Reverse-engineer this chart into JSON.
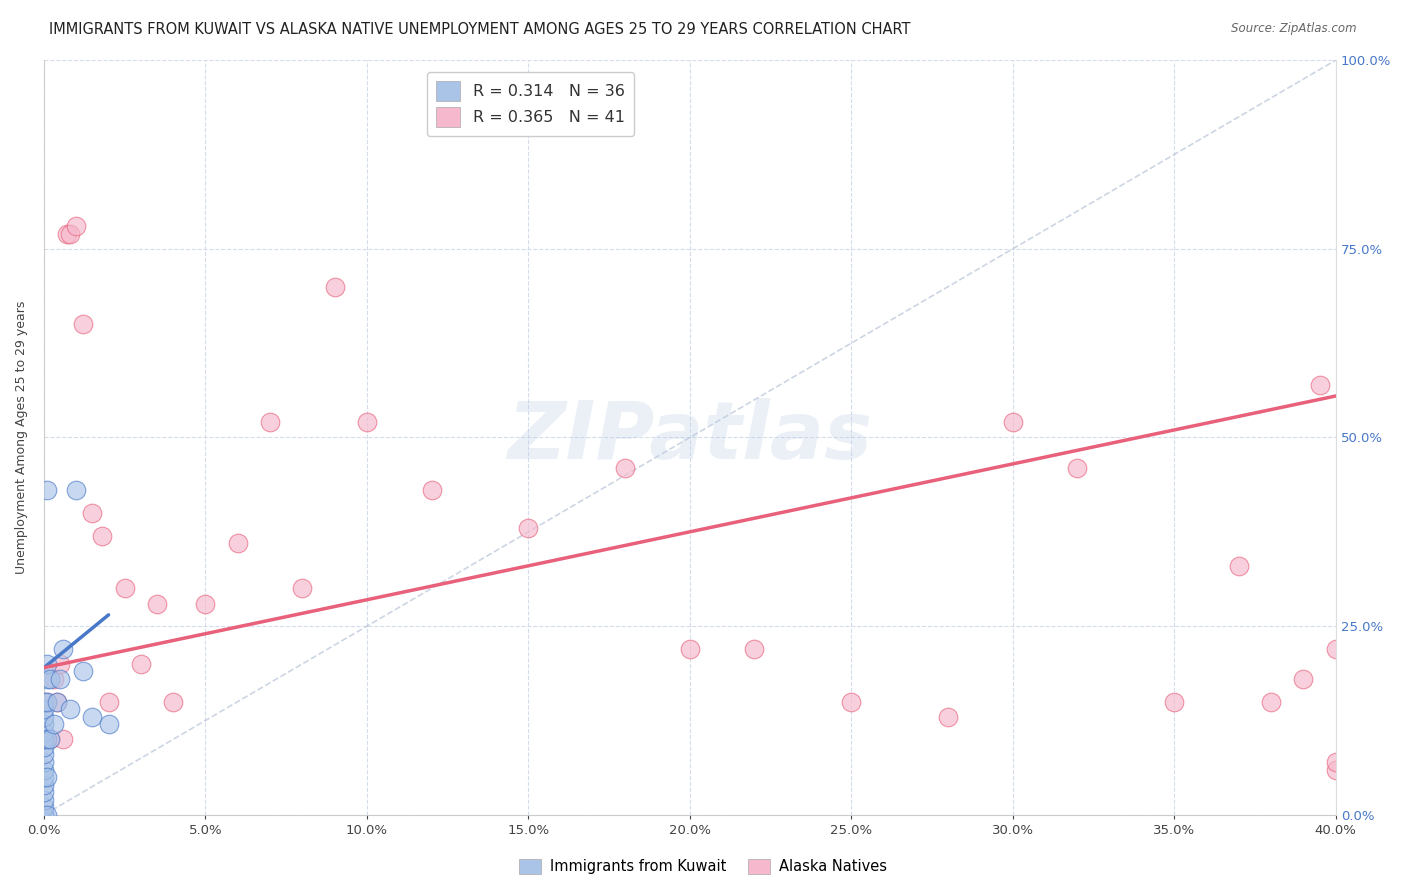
{
  "title": "IMMIGRANTS FROM KUWAIT VS ALASKA NATIVE UNEMPLOYMENT AMONG AGES 25 TO 29 YEARS CORRELATION CHART",
  "source": "Source: ZipAtlas.com",
  "ylabel_label": "Unemployment Among Ages 25 to 29 years",
  "legend_label1": "Immigrants from Kuwait",
  "legend_label2": "Alaska Natives",
  "r1": 0.314,
  "n1": 36,
  "r2": 0.365,
  "n2": 41,
  "color_blue": "#aac4e8",
  "color_pink": "#f5b8cc",
  "color_blue_line": "#4878c8",
  "color_pink_line": "#e8607a",
  "color_diag": "#b8c4d8",
  "kuwait_x": [
    0.0,
    0.0,
    0.0,
    0.0,
    0.0,
    0.0,
    0.0,
    0.0,
    0.0,
    0.0,
    0.0,
    0.0,
    0.0,
    0.0,
    0.0,
    0.0,
    0.0,
    0.0,
    0.001,
    0.001,
    0.001,
    0.001,
    0.001,
    0.001,
    0.001,
    0.002,
    0.002,
    0.003,
    0.004,
    0.005,
    0.006,
    0.008,
    0.01,
    0.012,
    0.015,
    0.02
  ],
  "kuwait_y": [
    0.0,
    0.0,
    0.0,
    0.01,
    0.02,
    0.03,
    0.04,
    0.05,
    0.06,
    0.07,
    0.08,
    0.09,
    0.1,
    0.11,
    0.12,
    0.13,
    0.14,
    0.15,
    0.0,
    0.05,
    0.1,
    0.15,
    0.18,
    0.2,
    0.43,
    0.1,
    0.18,
    0.12,
    0.15,
    0.18,
    0.22,
    0.14,
    0.43,
    0.19,
    0.13,
    0.12
  ],
  "alaska_x": [
    0.0,
    0.001,
    0.002,
    0.003,
    0.004,
    0.005,
    0.006,
    0.007,
    0.008,
    0.01,
    0.012,
    0.015,
    0.018,
    0.02,
    0.025,
    0.03,
    0.035,
    0.04,
    0.05,
    0.06,
    0.07,
    0.08,
    0.09,
    0.1,
    0.12,
    0.15,
    0.18,
    0.2,
    0.22,
    0.25,
    0.28,
    0.3,
    0.32,
    0.35,
    0.37,
    0.38,
    0.39,
    0.395,
    0.4,
    0.4,
    0.4
  ],
  "alaska_y": [
    0.1,
    0.15,
    0.1,
    0.18,
    0.15,
    0.2,
    0.1,
    0.77,
    0.77,
    0.78,
    0.65,
    0.4,
    0.37,
    0.15,
    0.3,
    0.2,
    0.28,
    0.15,
    0.28,
    0.36,
    0.52,
    0.3,
    0.7,
    0.52,
    0.43,
    0.38,
    0.46,
    0.22,
    0.22,
    0.15,
    0.13,
    0.52,
    0.46,
    0.15,
    0.33,
    0.15,
    0.18,
    0.57,
    0.06,
    0.22,
    0.07
  ],
  "xlim": [
    0.0,
    0.4
  ],
  "ylim": [
    0.0,
    1.0
  ],
  "watermark": "ZIPatlas",
  "title_fontsize": 10.5,
  "axis_label_fontsize": 9,
  "tick_fontsize": 9.5,
  "blue_line_x0": 0.0,
  "blue_line_y0": 0.195,
  "blue_line_x1": 0.02,
  "blue_line_y1": 0.265,
  "pink_line_x0": 0.0,
  "pink_line_y0": 0.195,
  "pink_line_x1": 0.4,
  "pink_line_y1": 0.555
}
